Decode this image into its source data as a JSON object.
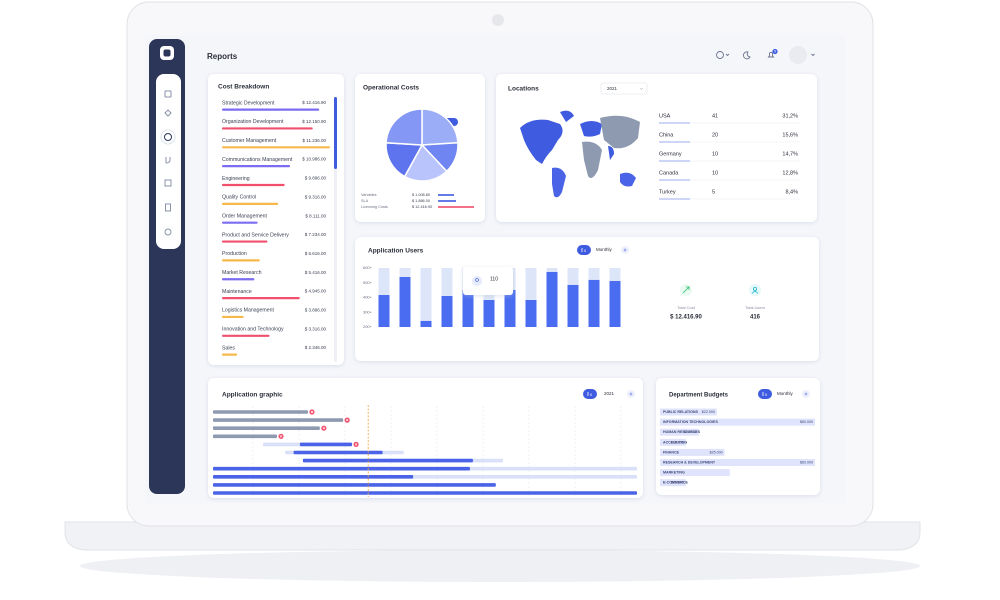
{
  "header": {
    "title": "Reports",
    "notifications": "5"
  },
  "cost_breakdown": {
    "title": "Cost Breakdown",
    "items": [
      {
        "label": "Strategic Development",
        "amount": "$ 12.416.90",
        "progress": 90,
        "color": "#7b6cf0"
      },
      {
        "label": "Organization Development",
        "amount": "$ 12.150.90",
        "progress": 84,
        "color": "#f0506e"
      },
      {
        "label": "Customer Management",
        "amount": "$ 11.236.00",
        "progress": 100,
        "color": "#f7b84b"
      },
      {
        "label": "Communications Management",
        "amount": "$ 10.986.00",
        "progress": 63,
        "color": "#7b6cf0"
      },
      {
        "label": "Engineering",
        "amount": "$ 9.896.00",
        "progress": 58,
        "color": "#f0506e"
      },
      {
        "label": "Quality Control",
        "amount": "$ 9.316.00",
        "progress": 52,
        "color": "#f7b84b"
      },
      {
        "label": "Order Management",
        "amount": "$ 8.111.00",
        "progress": 33,
        "color": "#7b6cf0"
      },
      {
        "label": "Product and Service Delivery",
        "amount": "$ 7.234.00",
        "progress": 42,
        "color": "#f0506e"
      },
      {
        "label": "Production",
        "amount": "$ 6.616.00",
        "progress": 35,
        "color": "#f7b84b"
      },
      {
        "label": "Market Research",
        "amount": "$ 5.416.00",
        "progress": 30,
        "color": "#7b6cf0"
      },
      {
        "label": "Maintenance",
        "amount": "$ 4.945.00",
        "progress": 72,
        "color": "#f0506e"
      },
      {
        "label": "Logistics Management",
        "amount": "$ 3.896.00",
        "progress": 20,
        "color": "#f7b84b"
      },
      {
        "label": "Innovation and Technology",
        "amount": "$ 3.316.00",
        "progress": 44,
        "color": "#f0506e"
      },
      {
        "label": "Sales",
        "amount": "$ 2.346.00",
        "progress": 14,
        "color": "#f7b84b"
      }
    ]
  },
  "operational_costs": {
    "type": "pie",
    "title": "Operational Costs",
    "values": [
      24,
      14,
      20,
      18,
      24
    ],
    "colors": [
      "#9cadf8",
      "#6f85f2",
      "#b8c4fb",
      "#5d74ee",
      "#8497f5"
    ],
    "legend": [
      {
        "label": "Variables",
        "amount": "$ 1.008.80",
        "progress": 40,
        "color": "#3f5be0"
      },
      {
        "label": "SLA",
        "amount": "$ 1.886.00",
        "progress": 45,
        "color": "#3f5be0"
      },
      {
        "label": "Licensing Costs",
        "amount": "$ 12.416.90",
        "progress": 90,
        "color": "#f0506e"
      }
    ]
  },
  "locations": {
    "title": "Locations",
    "year": "2021",
    "rows": [
      {
        "country": "USA",
        "users": 41,
        "share": "31,2%"
      },
      {
        "country": "China",
        "users": 20,
        "share": "15,6%"
      },
      {
        "country": "Germany",
        "users": 10,
        "share": "14,7%"
      },
      {
        "country": "Canada",
        "users": 10,
        "share": "12,8%"
      },
      {
        "country": "Turkey",
        "users": 5,
        "share": "8,4%"
      }
    ]
  },
  "application_users": {
    "type": "bar",
    "title": "Application Users",
    "period": "Monthly",
    "ylim": [
      200,
      600
    ],
    "yticks": [
      {
        "value": 600,
        "label": "600+"
      },
      {
        "value": 500,
        "label": "500+"
      },
      {
        "value": 400,
        "label": "400+"
      },
      {
        "value": 300,
        "label": "300+"
      },
      {
        "value": 200,
        "label": "200+"
      }
    ],
    "values": [
      417,
      539,
      241,
      410,
      451,
      383,
      451,
      383,
      573,
      485,
      519,
      512
    ],
    "color": "#4a6cf0",
    "tooltip": "110",
    "totals": [
      {
        "label": "Total Cost",
        "value": "$ 12.416.90"
      },
      {
        "label": "Total Users",
        "value": "416"
      }
    ]
  },
  "application_graphic": {
    "title": "Application graphic",
    "year": "2021",
    "xlim": [
      0,
      100
    ],
    "today": 36.6,
    "tasks": [
      {
        "start": 0,
        "end": 22.4,
        "color": "#8e9ab0",
        "alert": true
      },
      {
        "start": 0,
        "end": 30.7,
        "color": "#8e9ab0",
        "alert": true
      },
      {
        "start": 0,
        "end": 25.2,
        "color": "#8e9ab0",
        "alert": true
      },
      {
        "start": 0,
        "end": 15.1,
        "color": "#8e9ab0",
        "alert": true
      },
      {
        "track_start": 11.8,
        "track_end": 32.8,
        "start": 20.5,
        "end": 32.8,
        "color": "#4a63e7",
        "alert": true
      },
      {
        "track_start": 17,
        "track_end": 45,
        "start": 19,
        "end": 40,
        "color": "#4a63e7",
        "alert": false
      },
      {
        "track_start": 21.2,
        "track_end": 68.4,
        "start": 21.2,
        "end": 61.3,
        "color": "#4a63e7",
        "alert": false
      },
      {
        "track_start": 0,
        "track_end": 100,
        "start": 0,
        "end": 60.6,
        "color": "#4a63e7",
        "alert": false
      },
      {
        "track_start": 0,
        "track_end": 100,
        "start": 0,
        "end": 47.2,
        "color": "#4a63e7",
        "alert": false
      },
      {
        "start": 0,
        "end": 66.7,
        "color": "#4a63e7",
        "alert": false
      },
      {
        "start": 0,
        "end": 100,
        "color": "#4a63e7",
        "alert": false
      }
    ]
  },
  "department_budgets": {
    "type": "bar",
    "title": "Department Budgets",
    "period": "Monthly",
    "xlim": [
      0,
      60000
    ],
    "categories": [
      "PUBLIC RELATIONS",
      "INFORMATION TECHNOLOGIES",
      "HUMAN RESOURCES",
      "ACCOUNTING",
      "FINANCE",
      "RESEARCH & DEVELOPMENT",
      "MARKETING",
      "E-COMMERCE"
    ],
    "values": [
      22000,
      60000,
      15000,
      10000,
      25000,
      60000,
      27000,
      10000
    ],
    "value_labels": [
      "$22.000",
      "$60.000",
      "$15.000",
      "$10.000",
      "$25.000",
      "$60.000",
      null,
      "$10.000"
    ],
    "color": "#dfe3fb"
  }
}
